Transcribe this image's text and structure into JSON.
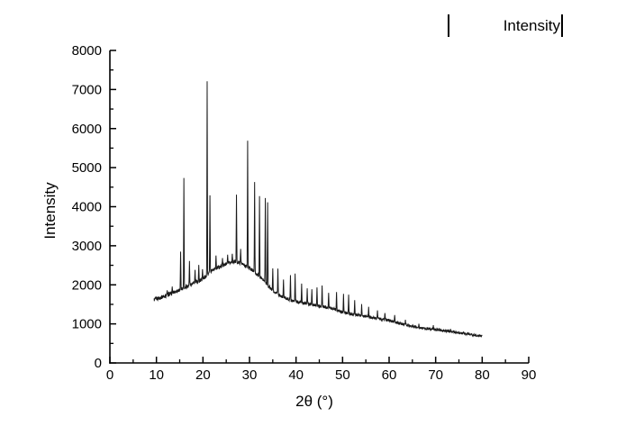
{
  "figure": {
    "background": "#ffffff",
    "axis_color": "#000000",
    "text_color": "#000000"
  },
  "legend": {
    "label": "Intensity"
  },
  "chart_data": {
    "type": "line",
    "title": "",
    "xlabel": "2θ (°)",
    "ylabel": "Intensity",
    "legend_entries": [
      "Intensity"
    ],
    "legend_position": "top-right",
    "grid": false,
    "xlim": [
      0,
      90
    ],
    "ylim": [
      0,
      8000
    ],
    "x_major_ticks": [
      0,
      10,
      20,
      30,
      40,
      50,
      60,
      70,
      80,
      90
    ],
    "x_minor_tick_step": 5,
    "y_major_ticks": [
      0,
      1000,
      2000,
      3000,
      4000,
      5000,
      6000,
      7000,
      8000
    ],
    "y_minor_tick_step": 500,
    "series": [
      {
        "name": "Intensity",
        "color": "#1a1a1a",
        "x_start": 9.5,
        "x_end": 80,
        "sample_step": 0.045,
        "peak_half_width": 0.11,
        "noise_amplitude": {
          "start": 50,
          "end": 26
        },
        "baseline": [
          [
            9.5,
            1620
          ],
          [
            12,
            1720
          ],
          [
            14,
            1820
          ],
          [
            16,
            1930
          ],
          [
            18,
            2040
          ],
          [
            20,
            2150
          ],
          [
            22,
            2380
          ],
          [
            24,
            2480
          ],
          [
            26,
            2570
          ],
          [
            27,
            2600
          ],
          [
            28,
            2560
          ],
          [
            30,
            2430
          ],
          [
            32,
            2230
          ],
          [
            33,
            2120
          ],
          [
            34,
            1980
          ],
          [
            35,
            1850
          ],
          [
            37,
            1700
          ],
          [
            39,
            1600
          ],
          [
            42,
            1520
          ],
          [
            44,
            1480
          ],
          [
            46,
            1440
          ],
          [
            48,
            1390
          ],
          [
            50,
            1300
          ],
          [
            52,
            1250
          ],
          [
            54,
            1210
          ],
          [
            56,
            1170
          ],
          [
            58,
            1130
          ],
          [
            60,
            1090
          ],
          [
            62,
            1020
          ],
          [
            64,
            960
          ],
          [
            66,
            910
          ],
          [
            68,
            880
          ],
          [
            70,
            850
          ],
          [
            72,
            820
          ],
          [
            74,
            790
          ],
          [
            76,
            760
          ],
          [
            78,
            720
          ],
          [
            80,
            680
          ]
        ],
        "peaks": [
          [
            12.3,
            1850
          ],
          [
            13.4,
            1950
          ],
          [
            15.2,
            2850
          ],
          [
            15.9,
            4750
          ],
          [
            17.1,
            2610
          ],
          [
            18.3,
            2380
          ],
          [
            19.1,
            2500
          ],
          [
            19.9,
            2400
          ],
          [
            20.9,
            7215
          ],
          [
            21.5,
            4290
          ],
          [
            22.8,
            2760
          ],
          [
            24.2,
            2680
          ],
          [
            25.3,
            2760
          ],
          [
            26.3,
            2800
          ],
          [
            27.2,
            4300
          ],
          [
            28.1,
            2920
          ],
          [
            29.6,
            5680
          ],
          [
            31.1,
            4620
          ],
          [
            32.15,
            4280
          ],
          [
            33.4,
            4230
          ],
          [
            33.9,
            4100
          ],
          [
            35.0,
            2430
          ],
          [
            36.1,
            2420
          ],
          [
            37.3,
            2140
          ],
          [
            38.8,
            2260
          ],
          [
            39.8,
            2300
          ],
          [
            41.2,
            2030
          ],
          [
            42.4,
            1900
          ],
          [
            43.4,
            1880
          ],
          [
            44.5,
            1940
          ],
          [
            45.6,
            1990
          ],
          [
            47.0,
            1800
          ],
          [
            48.7,
            1820
          ],
          [
            50.2,
            1760
          ],
          [
            51.3,
            1750
          ],
          [
            52.6,
            1600
          ],
          [
            54.1,
            1500
          ],
          [
            55.6,
            1430
          ],
          [
            57.5,
            1340
          ],
          [
            59.1,
            1280
          ],
          [
            61.2,
            1230
          ],
          [
            63.5,
            1100
          ],
          [
            66.4,
            1000
          ],
          [
            69.5,
            960
          ],
          [
            73.2,
            870
          ],
          [
            76.0,
            800
          ]
        ]
      }
    ]
  }
}
